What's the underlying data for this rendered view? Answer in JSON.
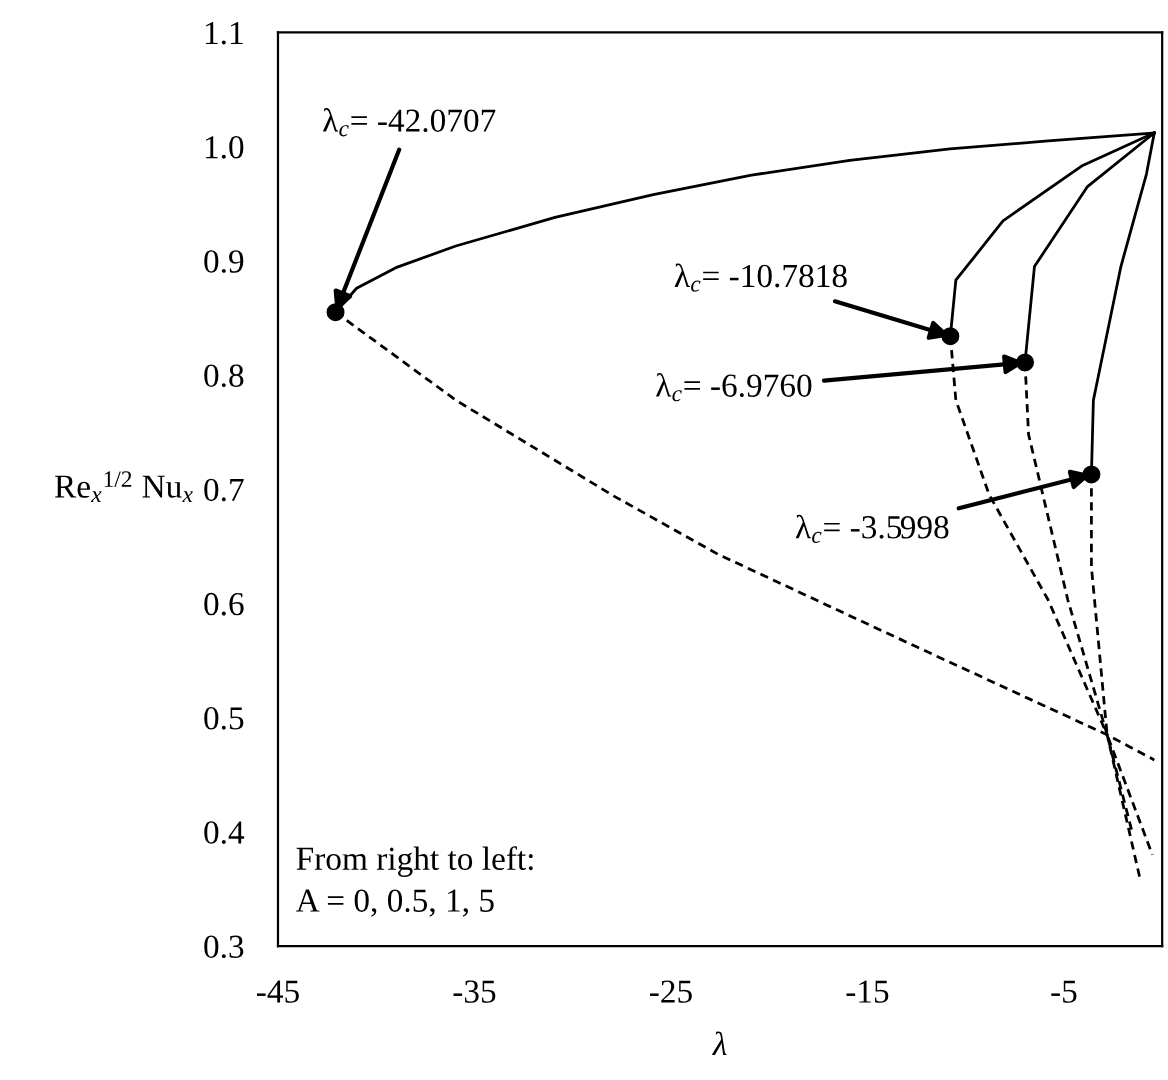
{
  "chart_data": {
    "type": "line",
    "xlabel": "λ",
    "ylabel": "Re$_{x}$$^{1/2}$ Nu$_{x}$",
    "xlim": [
      -45,
      0
    ],
    "xticks": [
      -45,
      -35,
      -25,
      -15,
      -5
    ],
    "ylim": [
      0.3,
      1.1
    ],
    "yticks": [
      {
        "value": 0.3,
        "label": "0.3"
      },
      {
        "value": 0.4,
        "label": "0.4"
      },
      {
        "value": 0.5,
        "label": "0.5"
      },
      {
        "value": 0.6,
        "label": "0.6"
      },
      {
        "value": 0.7,
        "label": "0.7"
      },
      {
        "value": 0.8,
        "label": "0.8"
      },
      {
        "value": 0.9,
        "label": "0.9"
      },
      {
        "value": 1.0,
        "label": "1.0"
      },
      {
        "value": 1.1,
        "label": "1.1"
      }
    ],
    "grid": false,
    "legend": false,
    "marker": "none",
    "series": [
      {
        "color": "#000000",
        "line_style": "solid",
        "x": [
          -42.07,
          -41.0,
          -39.0,
          -35.95,
          -30.9,
          -25.9,
          -20.9,
          -15.9,
          -10.8,
          -5.8,
          -0.4
        ],
        "values": [
          0.855,
          0.876,
          0.894,
          0.913,
          0.938,
          0.958,
          0.975,
          0.988,
          0.998,
          1.005,
          1.012
        ]
      },
      {
        "color": "#000000",
        "line_style": "dashed",
        "x": [
          -42.07,
          -35.95,
          -27.9,
          -22.6,
          -12.5,
          -2.8,
          -0.4
        ],
        "values": [
          0.855,
          0.778,
          0.694,
          0.643,
          0.562,
          0.485,
          0.463
        ]
      },
      {
        "color": "#000000",
        "line_style": "solid",
        "x": [
          -10.78,
          -10.5,
          -8.1,
          -4.1,
          -0.4
        ],
        "values": [
          0.834,
          0.883,
          0.935,
          0.983,
          1.012
        ]
      },
      {
        "color": "#000000",
        "line_style": "dashed",
        "x": [
          -10.78,
          -10.5,
          -8.8,
          -5.8,
          -2.8,
          -1.1
        ],
        "values": [
          0.834,
          0.778,
          0.695,
          0.603,
          0.485,
          0.357
        ]
      },
      {
        "color": "#000000",
        "line_style": "solid",
        "x": [
          -6.98,
          -6.5,
          -3.8,
          -0.4
        ],
        "values": [
          0.811,
          0.895,
          0.965,
          1.012
        ]
      },
      {
        "color": "#000000",
        "line_style": "dashed",
        "x": [
          -6.98,
          -6.8,
          -4.8,
          -2.8,
          -1.5
        ],
        "values": [
          0.811,
          0.748,
          0.603,
          0.485,
          0.398
        ]
      },
      {
        "color": "#000000",
        "line_style": "solid",
        "x": [
          -3.6,
          -3.5,
          -2.1,
          -0.8,
          -0.4
        ],
        "values": [
          0.713,
          0.778,
          0.895,
          0.976,
          1.012
        ]
      },
      {
        "color": "#000000",
        "line_style": "dashed",
        "x": [
          -3.6,
          -3.6,
          -2.8,
          -0.5
        ],
        "values": [
          0.713,
          0.632,
          0.485,
          0.38
        ]
      },
      {
        "type": "scatter",
        "marker": "circle",
        "color": "#000000",
        "x": [
          -42.07,
          -10.78,
          -6.98,
          -3.6
        ],
        "values": [
          0.855,
          0.834,
          0.811,
          0.713
        ]
      }
    ],
    "annotations": [
      {
        "text": "λ$_{c}$= -42.0707",
        "x": -42.07,
        "y": 0.855
      },
      {
        "text": "λ$_{c}$= -10.7818",
        "x": -10.78,
        "y": 0.834
      },
      {
        "text": "λ$_{c}$= -6.9760",
        "x": -6.98,
        "y": 0.811
      },
      {
        "text": "λ$_{c}$= -3.5998",
        "x": -3.6,
        "y": 0.713
      },
      "From right to left:\nA = 0, 0.5, 1, 5"
    ]
  }
}
